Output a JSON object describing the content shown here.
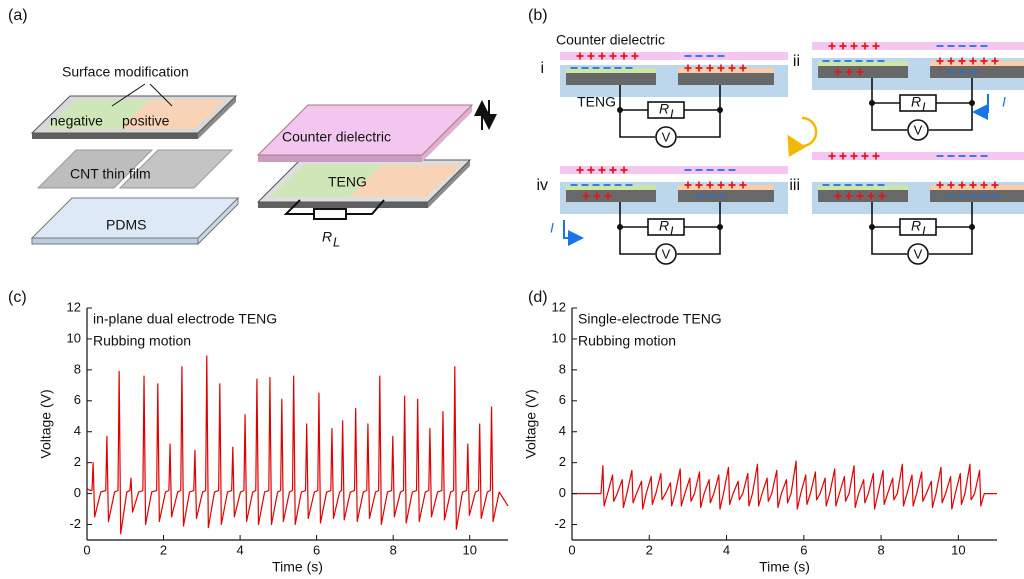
{
  "panel_labels": [
    "(a)",
    "(b)",
    "(c)",
    "(d)"
  ],
  "panel_a": {
    "surface_modification": "Surface modification",
    "negative": "negative",
    "positive": "positive",
    "cnt": "CNT thin film",
    "pdms": "PDMS",
    "counter": "Counter dielectric",
    "teng": "TENG",
    "resistor": "R",
    "resistor_sub": "L"
  },
  "panel_b": {
    "counter": "Counter dielectric",
    "stages": [
      "i",
      "ii",
      "iii",
      "iv"
    ],
    "teng": "TENG",
    "resistor": "R",
    "resistor_sub": "L",
    "meter": "V",
    "current": "I"
  },
  "chart_data": [
    {
      "type": "line",
      "annotations": [
        "in-plane dual electrode TENG",
        "Rubbing motion"
      ],
      "x_label": "Time (s)",
      "y_label": "Voltage (V)",
      "color": "#e00000",
      "xlim": [
        0,
        11
      ],
      "xticks": [
        0,
        2,
        4,
        6,
        8,
        10
      ],
      "ylim": [
        -3,
        12
      ],
      "yticks": [
        -2,
        0,
        2,
        4,
        6,
        8,
        10,
        12
      ],
      "x": [
        0,
        0.1,
        0.13,
        0.16,
        0.2,
        0.36,
        0.49,
        0.52,
        0.56,
        0.72,
        0.81,
        0.84,
        0.88,
        1.04,
        1.12,
        1.15,
        1.19,
        1.35,
        1.46,
        1.49,
        1.53,
        1.69,
        1.82,
        1.85,
        1.89,
        2.05,
        2.14,
        2.17,
        2.21,
        2.37,
        2.45,
        2.48,
        2.52,
        2.68,
        2.79,
        2.82,
        2.86,
        3.02,
        3.1,
        3.13,
        3.17,
        3.33,
        3.44,
        3.47,
        3.51,
        3.67,
        3.78,
        3.81,
        3.85,
        4.01,
        4.1,
        4.13,
        4.17,
        4.33,
        4.41,
        4.44,
        4.48,
        4.64,
        4.75,
        4.78,
        4.82,
        4.98,
        5.06,
        5.09,
        5.13,
        5.29,
        5.37,
        5.4,
        5.44,
        5.6,
        5.71,
        5.74,
        5.78,
        5.94,
        6.03,
        6.06,
        6.1,
        6.26,
        6.37,
        6.4,
        6.44,
        6.6,
        6.65,
        6.68,
        6.72,
        6.88,
        6.99,
        7.02,
        7.06,
        7.22,
        7.31,
        7.34,
        7.38,
        7.54,
        7.62,
        7.65,
        7.69,
        7.85,
        7.96,
        7.99,
        8.03,
        8.19,
        8.27,
        8.3,
        8.34,
        8.5,
        8.61,
        8.64,
        8.68,
        8.84,
        8.93,
        8.96,
        9.0,
        9.16,
        9.27,
        9.3,
        9.34,
        9.5,
        9.58,
        9.61,
        9.65,
        9.81,
        9.92,
        9.95,
        9.99,
        10.15,
        10.23,
        10.26,
        10.3,
        10.46,
        10.54,
        10.57,
        10.61,
        10.77,
        11
      ],
      "values": [
        0.3,
        0.2,
        0.2,
        2,
        -1.5,
        0.1,
        0.2,
        3.7,
        -1.8,
        0.1,
        0.2,
        7.9,
        -2.6,
        0.1,
        0.2,
        1,
        -1.2,
        0.1,
        0.2,
        7.6,
        -2,
        0.1,
        0.2,
        7.1,
        -1.8,
        0.1,
        0.2,
        3.2,
        -1.5,
        0.1,
        0.2,
        8.2,
        -2.1,
        0.1,
        0.2,
        2.8,
        -1.6,
        0.1,
        0.2,
        8.9,
        -2.2,
        0.1,
        0.2,
        7.1,
        -2,
        0.1,
        0.2,
        3,
        -1.5,
        0.1,
        0.2,
        5.1,
        -1.8,
        0.1,
        0.2,
        7.4,
        -2,
        0.1,
        0.2,
        7.5,
        -2,
        0.1,
        0.2,
        6.1,
        -1.8,
        0.1,
        0.2,
        7.6,
        -2,
        0.1,
        0.2,
        4.5,
        -1.6,
        0.1,
        0.2,
        6.5,
        -1.9,
        0.1,
        0.2,
        4.2,
        -1.6,
        0.1,
        0.2,
        4.7,
        -1.7,
        0.1,
        0.2,
        5.5,
        -1.8,
        0.1,
        0.2,
        4.5,
        -1.6,
        0.1,
        0.2,
        7.6,
        -2,
        0.1,
        0.2,
        3.7,
        -1.5,
        0.1,
        0.2,
        6.3,
        -1.9,
        0.1,
        0.2,
        6.1,
        -1.8,
        0.1,
        0.2,
        4.2,
        -1.5,
        0.1,
        0.2,
        5.3,
        -1.7,
        0.1,
        0.2,
        8.2,
        -2.3,
        0.1,
        0.2,
        3.2,
        -1.4,
        0.1,
        0.2,
        4.5,
        -1.6,
        0.1,
        0.2,
        5.6,
        -1.8,
        0.1,
        -0.8
      ]
    },
    {
      "type": "line",
      "annotations": [
        "Single-electrode TENG",
        "Rubbing motion"
      ],
      "x_label": "Time (s)",
      "y_label": "Voltage (V)",
      "color": "#e00000",
      "xlim": [
        0,
        11
      ],
      "xticks": [
        0,
        2,
        4,
        6,
        8,
        10
      ],
      "ylim": [
        -3,
        12
      ],
      "yticks": [
        -2,
        0,
        2,
        4,
        6,
        8,
        10,
        12
      ],
      "x": [
        0,
        0.75,
        0.8,
        0.83,
        0.92,
        1.05,
        1.08,
        1.17,
        1.3,
        1.33,
        1.42,
        1.55,
        1.58,
        1.67,
        1.8,
        1.83,
        1.92,
        2.05,
        2.08,
        2.17,
        2.3,
        2.33,
        2.42,
        2.55,
        2.58,
        2.67,
        2.8,
        2.83,
        2.92,
        3.05,
        3.08,
        3.17,
        3.3,
        3.33,
        3.42,
        3.55,
        3.58,
        3.67,
        3.8,
        3.83,
        3.92,
        4.05,
        4.08,
        4.17,
        4.3,
        4.33,
        4.42,
        4.55,
        4.58,
        4.67,
        4.8,
        4.83,
        4.92,
        5.05,
        5.08,
        5.17,
        5.3,
        5.33,
        5.42,
        5.55,
        5.58,
        5.67,
        5.8,
        5.83,
        5.92,
        6.05,
        6.08,
        6.17,
        6.3,
        6.33,
        6.42,
        6.55,
        6.58,
        6.67,
        6.8,
        6.83,
        6.92,
        7.05,
        7.08,
        7.17,
        7.3,
        7.33,
        7.42,
        7.55,
        7.58,
        7.67,
        7.8,
        7.83,
        7.92,
        8.05,
        8.08,
        8.17,
        8.3,
        8.33,
        8.42,
        8.55,
        8.58,
        8.67,
        8.8,
        8.83,
        8.92,
        9.05,
        9.08,
        9.17,
        9.3,
        9.33,
        9.42,
        9.55,
        9.58,
        9.67,
        9.8,
        9.83,
        9.92,
        10.05,
        10.08,
        10.17,
        10.3,
        10.33,
        10.42,
        10.55,
        10.58,
        10.67,
        10.9,
        11
      ],
      "values": [
        0,
        0,
        1.8,
        -0.8,
        0,
        1.2,
        -0.5,
        0,
        0.9,
        -0.9,
        0,
        1.5,
        -0.6,
        0,
        0.8,
        -1.0,
        0,
        1.1,
        -0.7,
        0,
        1.3,
        -0.4,
        0,
        0.7,
        -0.8,
        0,
        1.6,
        -0.8,
        0,
        1.0,
        -0.5,
        0,
        1.4,
        -0.9,
        0,
        0.9,
        -0.6,
        0,
        1.2,
        -1.0,
        0,
        1.7,
        -0.7,
        0,
        0.8,
        -0.4,
        0,
        1.3,
        -0.8,
        0,
        1.9,
        -0.8,
        0,
        1.0,
        -0.5,
        0,
        1.5,
        -0.9,
        0,
        0.9,
        -0.6,
        0,
        2.1,
        -1.0,
        0,
        1.2,
        -0.7,
        0,
        1.4,
        -0.4,
        0,
        1.0,
        -0.8,
        0,
        1.6,
        -0.8,
        0,
        1.1,
        -0.5,
        0,
        1.8,
        -0.9,
        0,
        0.9,
        -0.6,
        0,
        1.3,
        -1.0,
        0,
        1.5,
        -0.7,
        0,
        1.0,
        -0.4,
        0,
        1.9,
        -0.8,
        0,
        1.2,
        -0.8,
        0,
        1.4,
        -0.5,
        0,
        0.8,
        -0.9,
        0,
        1.7,
        -0.6,
        0,
        1.1,
        -1.0,
        0,
        1.3,
        -0.7,
        0,
        1.9,
        -0.4,
        0,
        1.5,
        -0.8,
        0,
        0,
        0
      ]
    }
  ]
}
